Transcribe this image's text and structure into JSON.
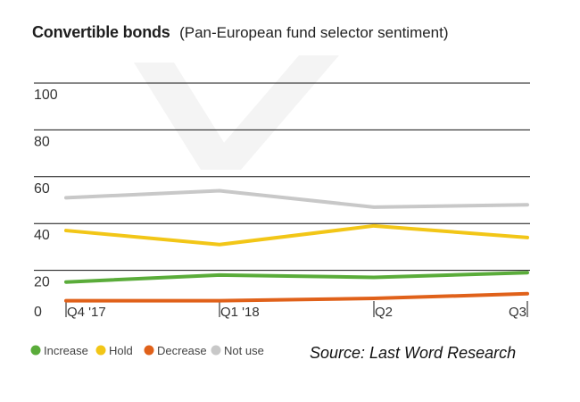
{
  "title": "Convertible bonds",
  "subtitle": "(Pan-European fund selector sentiment)",
  "source": "Source: Last Word Research",
  "chart_data": {
    "type": "line",
    "title": "Convertible bonds",
    "subtitle": "(Pan-European fund selector sentiment)",
    "categories": [
      "Q4 '17",
      "Q1 '18",
      "Q2",
      "Q3"
    ],
    "y_ticks": [
      "0",
      "20",
      "40",
      "60",
      "80",
      "100"
    ],
    "ylim": [
      0,
      100
    ],
    "grid": true,
    "legend_position": "bottom-left",
    "series": [
      {
        "name": "Increase",
        "color": "#5aac3a",
        "values": [
          15,
          18,
          17,
          19
        ]
      },
      {
        "name": "Hold",
        "color": "#f2c617",
        "values": [
          37,
          31,
          39,
          34
        ]
      },
      {
        "name": "Decrease",
        "color": "#e0611a",
        "values": [
          7,
          7,
          8,
          10
        ]
      },
      {
        "name": "Not use",
        "color": "#c8c8c8",
        "values": [
          51,
          54,
          47,
          48
        ]
      }
    ]
  }
}
